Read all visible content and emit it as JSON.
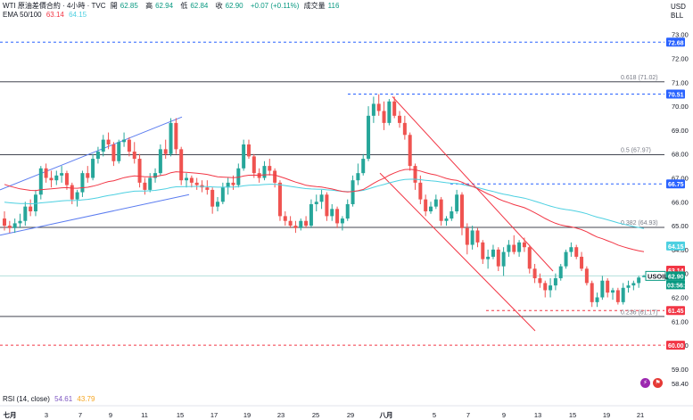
{
  "header": {
    "title": "WTI 原油差價合約 · 4小時 · TVC",
    "ohlc": [
      {
        "k": "開",
        "v": "62.85"
      },
      {
        "k": "高",
        "v": "62.94"
      },
      {
        "k": "低",
        "v": "62.84"
      },
      {
        "k": "收",
        "v": "62.90"
      }
    ],
    "change": "+0.07 (+0.11%)",
    "volume_label": "成交量",
    "volume_value": "116",
    "ema_label": "EMA 50/100",
    "ema50": "63.14",
    "ema100": "64.15"
  },
  "price_axis": {
    "currency": "USD",
    "unit": "BLL"
  },
  "rsi": {
    "label": "RSI (14, close)",
    "v1": "54.61",
    "v2": "43.79"
  },
  "colors": {
    "up": "#26a69a",
    "down": "#ef5350",
    "ema50": "#f23645",
    "ema100": "#4dd0e1",
    "channel_blue": "#5b7cf0",
    "channel_red": "#f23645",
    "price_tag": "#2962ff",
    "current_tag": "#089981",
    "grid_text": "#131722"
  },
  "chart_data": {
    "type": "candlestick",
    "ylim": [
      58.1,
      73.4
    ],
    "yticks": [
      "73.00",
      "72.00",
      "71.00",
      "70.00",
      "69.00",
      "68.00",
      "67.00",
      "66.00",
      "65.00",
      "64.00",
      "63.00",
      "62.00",
      "61.00",
      "60.00",
      "59.00",
      "58.40"
    ],
    "xticks": [
      "七月",
      "3",
      "7",
      "9",
      "11",
      "15",
      "17",
      "19",
      "23",
      "25",
      "29",
      "八月",
      "5",
      "7",
      "9",
      "13",
      "15",
      "19",
      "21"
    ],
    "candles": [
      [
        65.3,
        65.6,
        64.8,
        65.0
      ],
      [
        65.0,
        65.2,
        64.7,
        64.9
      ],
      [
        64.9,
        65.3,
        64.7,
        65.1
      ],
      [
        65.1,
        65.5,
        64.9,
        65.2
      ],
      [
        65.2,
        66.0,
        65.0,
        65.8
      ],
      [
        65.8,
        66.1,
        65.4,
        65.6
      ],
      [
        65.6,
        66.5,
        65.4,
        66.3
      ],
      [
        66.3,
        67.5,
        66.1,
        67.4
      ],
      [
        67.4,
        67.6,
        66.8,
        67.0
      ],
      [
        67.0,
        67.3,
        66.6,
        66.9
      ],
      [
        66.9,
        67.3,
        66.7,
        67.1
      ],
      [
        67.1,
        67.5,
        66.8,
        67.2
      ],
      [
        67.2,
        67.3,
        66.5,
        66.7
      ],
      [
        66.7,
        66.8,
        65.9,
        66.1
      ],
      [
        66.1,
        66.5,
        65.8,
        66.4
      ],
      [
        66.4,
        67.3,
        66.2,
        67.2
      ],
      [
        67.2,
        67.5,
        66.8,
        67.0
      ],
      [
        67.0,
        68.0,
        66.9,
        67.8
      ],
      [
        67.8,
        68.3,
        67.6,
        68.1
      ],
      [
        68.1,
        68.8,
        67.9,
        68.6
      ],
      [
        68.6,
        68.9,
        68.2,
        68.4
      ],
      [
        68.4,
        68.5,
        67.5,
        67.7
      ],
      [
        67.7,
        68.6,
        67.6,
        68.5
      ],
      [
        68.5,
        68.9,
        68.3,
        68.6
      ],
      [
        68.6,
        68.7,
        67.9,
        68.1
      ],
      [
        68.1,
        68.5,
        67.6,
        67.8
      ],
      [
        67.8,
        68.0,
        66.6,
        66.8
      ],
      [
        66.8,
        67.0,
        66.3,
        66.5
      ],
      [
        66.5,
        67.2,
        66.4,
        67.0
      ],
      [
        67.0,
        67.4,
        66.8,
        67.2
      ],
      [
        67.2,
        68.4,
        67.1,
        68.2
      ],
      [
        68.2,
        68.6,
        67.8,
        68.0
      ],
      [
        68.0,
        69.5,
        67.9,
        69.3
      ],
      [
        69.3,
        69.5,
        68.0,
        68.2
      ],
      [
        68.2,
        68.3,
        66.7,
        66.9
      ],
      [
        66.9,
        67.2,
        66.6,
        67.0
      ],
      [
        67.0,
        67.1,
        66.6,
        66.8
      ],
      [
        66.8,
        67.0,
        66.5,
        66.7
      ],
      [
        66.7,
        66.9,
        66.4,
        66.6
      ],
      [
        66.6,
        66.9,
        66.3,
        66.5
      ],
      [
        66.5,
        66.6,
        65.5,
        65.8
      ],
      [
        65.8,
        66.2,
        65.6,
        66.0
      ],
      [
        66.0,
        66.8,
        65.9,
        66.6
      ],
      [
        66.6,
        67.0,
        66.3,
        66.8
      ],
      [
        66.8,
        67.1,
        66.5,
        66.7
      ],
      [
        66.7,
        67.6,
        66.6,
        67.4
      ],
      [
        67.4,
        68.6,
        67.3,
        68.4
      ],
      [
        68.4,
        68.6,
        67.8,
        67.9
      ],
      [
        67.9,
        68.0,
        67.0,
        67.2
      ],
      [
        67.2,
        67.4,
        66.8,
        67.0
      ],
      [
        67.0,
        67.7,
        66.9,
        67.5
      ],
      [
        67.5,
        67.8,
        67.1,
        67.3
      ],
      [
        67.3,
        67.4,
        66.6,
        66.8
      ],
      [
        66.8,
        66.9,
        65.2,
        65.4
      ],
      [
        65.4,
        65.6,
        65.0,
        65.2
      ],
      [
        65.2,
        65.4,
        64.9,
        65.0
      ],
      [
        65.0,
        65.2,
        64.7,
        64.9
      ],
      [
        64.9,
        65.3,
        64.8,
        65.2
      ],
      [
        65.2,
        65.4,
        64.9,
        65.0
      ],
      [
        65.0,
        66.1,
        64.9,
        65.9
      ],
      [
        65.9,
        66.3,
        65.6,
        66.0
      ],
      [
        66.0,
        66.5,
        65.7,
        66.3
      ],
      [
        66.3,
        66.4,
        65.2,
        65.4
      ],
      [
        65.4,
        65.9,
        65.2,
        65.7
      ],
      [
        65.7,
        65.8,
        64.9,
        65.1
      ],
      [
        65.1,
        65.4,
        64.8,
        65.3
      ],
      [
        65.3,
        66.1,
        65.2,
        65.9
      ],
      [
        65.9,
        67.1,
        65.8,
        66.9
      ],
      [
        66.9,
        67.6,
        66.7,
        67.2
      ],
      [
        67.2,
        68.0,
        67.1,
        67.8
      ],
      [
        67.8,
        70.0,
        67.7,
        69.6
      ],
      [
        69.6,
        70.4,
        69.3,
        70.1
      ],
      [
        70.1,
        70.5,
        69.6,
        69.8
      ],
      [
        69.8,
        70.2,
        69.0,
        69.3
      ],
      [
        69.3,
        70.3,
        69.2,
        70.2
      ],
      [
        70.2,
        70.4,
        69.5,
        69.6
      ],
      [
        69.6,
        69.8,
        69.1,
        69.3
      ],
      [
        69.3,
        69.6,
        68.6,
        68.8
      ],
      [
        68.8,
        68.9,
        67.3,
        67.5
      ],
      [
        67.5,
        67.6,
        66.5,
        66.8
      ],
      [
        66.8,
        67.1,
        65.9,
        66.1
      ],
      [
        66.1,
        66.3,
        65.4,
        65.6
      ],
      [
        65.6,
        66.0,
        65.5,
        65.8
      ],
      [
        65.8,
        66.3,
        65.7,
        66.1
      ],
      [
        66.1,
        66.2,
        65.0,
        65.2
      ],
      [
        65.2,
        65.4,
        65.0,
        65.3
      ],
      [
        65.3,
        65.8,
        65.2,
        65.6
      ],
      [
        65.6,
        66.5,
        65.5,
        66.3
      ],
      [
        66.3,
        66.4,
        64.6,
        64.9
      ],
      [
        64.9,
        65.1,
        63.8,
        64.2
      ],
      [
        64.2,
        65.0,
        64.0,
        64.8
      ],
      [
        64.8,
        64.9,
        64.1,
        64.3
      ],
      [
        64.3,
        64.4,
        63.4,
        63.6
      ],
      [
        63.6,
        64.0,
        63.2,
        63.7
      ],
      [
        63.7,
        64.2,
        63.6,
        64.0
      ],
      [
        64.0,
        64.1,
        63.1,
        63.3
      ],
      [
        63.3,
        64.1,
        62.9,
        63.9
      ],
      [
        63.9,
        64.4,
        63.7,
        64.2
      ],
      [
        64.2,
        64.6,
        63.8,
        63.9
      ],
      [
        63.9,
        64.4,
        63.7,
        64.3
      ],
      [
        64.3,
        64.5,
        63.9,
        64.1
      ],
      [
        64.1,
        64.2,
        63.0,
        63.2
      ],
      [
        63.2,
        63.4,
        62.6,
        62.8
      ],
      [
        62.8,
        63.0,
        62.4,
        62.6
      ],
      [
        62.6,
        62.7,
        62.0,
        62.3
      ],
      [
        62.3,
        62.8,
        62.0,
        62.5
      ],
      [
        62.5,
        63.0,
        62.3,
        62.8
      ],
      [
        62.8,
        63.4,
        62.7,
        63.3
      ],
      [
        63.3,
        64.0,
        63.2,
        63.9
      ],
      [
        63.9,
        64.3,
        63.7,
        64.1
      ],
      [
        64.1,
        64.2,
        63.6,
        63.7
      ],
      [
        63.7,
        63.9,
        63.1,
        63.2
      ],
      [
        63.2,
        63.3,
        62.5,
        62.6
      ],
      [
        62.6,
        62.7,
        61.6,
        61.8
      ],
      [
        61.8,
        62.2,
        61.6,
        62.0
      ],
      [
        62.0,
        62.9,
        61.9,
        62.7
      ],
      [
        62.7,
        62.8,
        62.0,
        62.2
      ],
      [
        62.2,
        62.4,
        61.9,
        62.3
      ],
      [
        62.3,
        62.4,
        61.7,
        61.8
      ],
      [
        61.8,
        62.6,
        61.7,
        62.4
      ],
      [
        62.4,
        62.7,
        62.2,
        62.5
      ],
      [
        62.5,
        62.7,
        62.3,
        62.6
      ],
      [
        62.6,
        62.9,
        62.4,
        62.83
      ],
      [
        62.85,
        62.94,
        62.84,
        62.9
      ]
    ],
    "horizontal_levels": [
      72.68,
      71.02,
      70.51,
      67.97,
      66.75,
      64.93,
      62.9,
      61.2,
      60.0
    ],
    "fib_levels": [
      {
        "label": "0.618 (71.02)",
        "value": 71.02
      },
      {
        "label": "0.5 (67.97)",
        "value": 67.97
      },
      {
        "label": "0.382 (64.93)",
        "value": 64.93
      },
      {
        "label": "0.236 (61.17)",
        "value": 61.17
      }
    ],
    "price_tags": [
      {
        "text": "72.68",
        "value": 72.68,
        "color": "#2962ff"
      },
      {
        "text": "70.51",
        "value": 70.51,
        "color": "#2962ff"
      },
      {
        "text": "66.75",
        "value": 66.75,
        "color": "#2962ff"
      },
      {
        "text": "64.15",
        "value": 64.15,
        "color": "#4dd0e1"
      },
      {
        "text": "63.14",
        "value": 63.14,
        "color": "#f23645"
      },
      {
        "text": "62.90",
        "value": 62.9,
        "color": "#089981"
      },
      {
        "text": "61.45",
        "value": 61.45,
        "color": "#f23645"
      },
      {
        "text": "60.00",
        "value": 60.0,
        "color": "#f23645"
      }
    ],
    "current_label": "USOIL",
    "countdown": "03:56:34"
  }
}
